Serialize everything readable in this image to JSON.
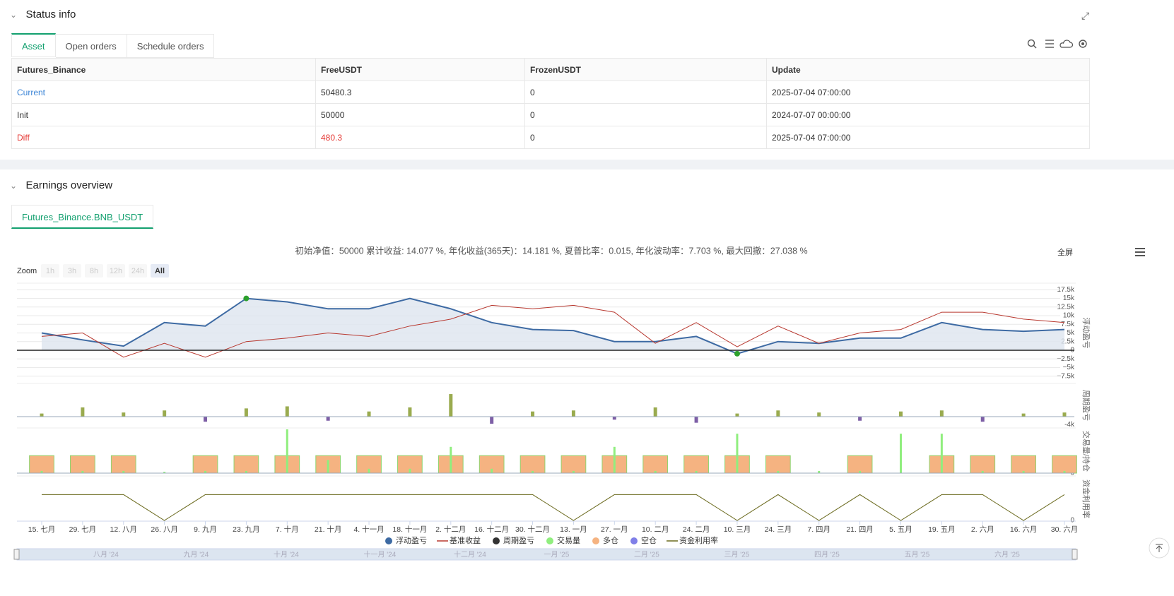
{
  "status": {
    "title": "Status info",
    "tabs": [
      "Asset",
      "Open orders",
      "Schedule orders"
    ],
    "table": {
      "header": [
        "Futures_Binance",
        "FreeUSDT",
        "FrozenUSDT",
        "Update"
      ],
      "rows": [
        [
          "Current",
          "50480.3",
          "0",
          "2025-07-04 07:00:00"
        ],
        [
          "Init",
          "50000",
          "0",
          "2024-07-07 00:00:00"
        ],
        [
          "Diff",
          "480.3",
          "0",
          "2025-07-04 07:00:00"
        ]
      ]
    }
  },
  "earnings": {
    "title": "Earnings overview",
    "tab": "Futures_Binance.BNB_USDT",
    "summary": "初始净值：50000 累计收益: 14.077 %, 年化收益(365天)：14.181 %, 夏普比率：0.015, 年化波动率：7.703 %, 最大回撤：27.038 %",
    "fullscreen": "全屏",
    "zoom": {
      "label": "Zoom",
      "buttons": [
        "1h",
        "3h",
        "8h",
        "12h",
        "24h",
        "All"
      ]
    },
    "navigator": [
      "八月 '24",
      "九月 '24",
      "十月 '24",
      "十一月 '24",
      "十二月 '24",
      "一月 '25",
      "二月 '25",
      "三月 '25",
      "四月 '25",
      "五月 '25",
      "六月 '25"
    ]
  },
  "chart_data": [
    {
      "type": "line",
      "y_label": "浮动盈亏",
      "grid": true,
      "zero_line": true,
      "categories": [
        "15. 七月",
        "29. 七月",
        "12. 八月",
        "26. 八月",
        "9. 九月",
        "23. 九月",
        "7. 十月",
        "21. 十月",
        "4. 十一月",
        "18. 十一月",
        "2. 十二月",
        "16. 十二月",
        "30. 十二月",
        "13. 一月",
        "27. 一月",
        "10. 二月",
        "24. 二月",
        "10. 三月",
        "24. 三月",
        "7. 四月",
        "21. 四月",
        "5. 五月",
        "19. 五月",
        "2. 六月",
        "16. 六月",
        "30. 六月"
      ],
      "ylim": [
        -9000,
        19000
      ],
      "yticks": [
        {
          "value": 17500,
          "label": "17.5k"
        },
        {
          "value": 15000,
          "label": "15k"
        },
        {
          "value": 12500,
          "label": "12.5k"
        },
        {
          "value": 10000,
          "label": "10k"
        },
        {
          "value": 7500,
          "label": "7.5k"
        },
        {
          "value": 5000,
          "label": "5k"
        },
        {
          "value": 2500,
          "label": "2.5k"
        },
        0,
        {
          "value": -2500,
          "label": "−2.5k"
        },
        {
          "value": -5000,
          "label": "−5k"
        },
        {
          "value": -7500,
          "label": "−7.5k"
        }
      ],
      "series": [
        {
          "name": "浮动盈亏",
          "color": "#3d6aa3",
          "fill": "#dde5ef",
          "values": [
            5000,
            3000,
            1200,
            8000,
            7000,
            15000,
            14000,
            12000,
            12000,
            15000,
            12000,
            8000,
            6000,
            5700,
            2500,
            2500,
            4000,
            -1000,
            2500,
            2000,
            3500,
            3500,
            8000,
            6000,
            5500,
            6000
          ]
        },
        {
          "name": "基准收益",
          "color": "#b8382f",
          "values": [
            4000,
            5000,
            -2000,
            2000,
            -2000,
            2500,
            3500,
            5000,
            4000,
            7000,
            9000,
            13000,
            12000,
            13000,
            11000,
            2000,
            8000,
            1000,
            7000,
            2000,
            5000,
            6000,
            11000,
            11000,
            9000,
            8000
          ]
        }
      ]
    },
    {
      "type": "bar",
      "y_label": "周期盈亏",
      "ylim": [
        -4500,
        15500
      ],
      "yticks": [
        {
          "value": -4000,
          "label": "-4k"
        }
      ],
      "positive_color": "#9aab4f",
      "negative_color": "#7d5fa6",
      "series": [
        {
          "name": "周期盈亏",
          "color": "#333333",
          "values": [
            1500,
            4500,
            2000,
            3000,
            -2500,
            4000,
            5000,
            -2000,
            2500,
            4500,
            11000,
            -3500,
            2500,
            3000,
            -1500,
            4500,
            -3000,
            1500,
            3000,
            2000,
            -2000,
            2500,
            3000,
            -2500,
            1500,
            2000
          ]
        }
      ]
    },
    {
      "type": "bar",
      "y_label": "交易量/持仓",
      "ylim": [
        0,
        100
      ],
      "yticks": [
        0
      ],
      "series": [
        {
          "name": "交易量",
          "color": "#90ee7e",
          "values": [
            5,
            5,
            5,
            3,
            5,
            5,
            100,
            30,
            10,
            10,
            60,
            10,
            5,
            5,
            60,
            5,
            5,
            90,
            5,
            5,
            5,
            90,
            90,
            5,
            5,
            5
          ]
        },
        {
          "name": "多仓",
          "color": "#f5b381",
          "values": [
            40,
            40,
            40,
            0,
            40,
            40,
            40,
            40,
            40,
            40,
            40,
            40,
            40,
            40,
            40,
            40,
            40,
            40,
            40,
            0,
            40,
            0,
            40,
            40,
            40,
            40
          ]
        },
        {
          "name": "空仓",
          "color": "#7f7fe8",
          "values": [
            0,
            0,
            0,
            0,
            0,
            0,
            0,
            0,
            0,
            0,
            0,
            0,
            0,
            0,
            0,
            0,
            0,
            0,
            0,
            0,
            0,
            0,
            0,
            0,
            0,
            0
          ]
        }
      ]
    },
    {
      "type": "line",
      "y_label": "资金利用率",
      "ylim": [
        0,
        100
      ],
      "yticks": [
        0
      ],
      "series": [
        {
          "name": "资金利用率",
          "color": "#6b6a1e",
          "values": [
            60,
            60,
            60,
            0,
            60,
            60,
            60,
            60,
            60,
            60,
            60,
            60,
            60,
            0,
            60,
            60,
            60,
            0,
            60,
            0,
            60,
            0,
            60,
            60,
            0,
            60
          ]
        }
      ]
    }
  ]
}
